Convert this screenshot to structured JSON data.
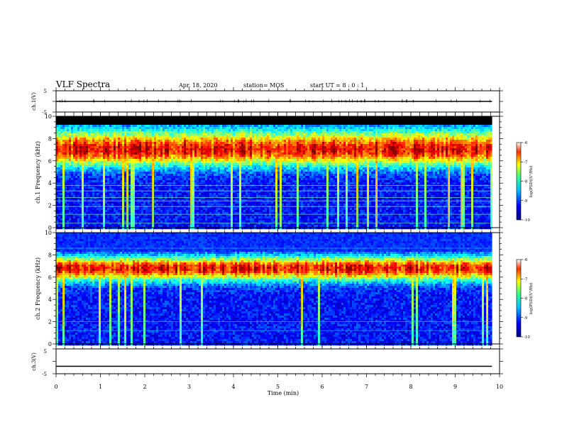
{
  "header": {
    "title": "VLF Spectra",
    "date": "Apr. 18, 2020",
    "station": "station= MOS",
    "start": "start  UT =  8 : 0 : 1"
  },
  "colorbar": {
    "ticks": [
      "-6",
      "-7",
      "-8",
      "-9",
      "-10"
    ],
    "label": "log(PSD)(V²/Hz)"
  },
  "chart_data": [
    {
      "type": "line",
      "panel": "ch.1 waveform",
      "ylabel": "ch.1(V)",
      "ylim": [
        -5,
        5
      ],
      "yticks": [
        "5",
        "-5"
      ],
      "x": [
        0,
        9.83
      ],
      "values": [
        0,
        0
      ],
      "xlim": [
        0,
        10
      ]
    },
    {
      "type": "heatmap",
      "panel": "ch.1 spectrogram",
      "ylabel": "ch.1 Frequency (kHz)",
      "ylim": [
        0,
        10
      ],
      "yticks": [
        "0",
        "2",
        "4",
        "6",
        "8",
        "10"
      ],
      "xlim": [
        0,
        10
      ],
      "x_data_end": 9.83,
      "band_center_khz": 7.0,
      "band_lower_khz": 5.3,
      "band_upper_khz": 9.0,
      "black_above_khz": 9.3,
      "narrowband_lines_khz": [
        0.4,
        1.2,
        1.9,
        2.4,
        2.7,
        3.3,
        3.8
      ],
      "colorscale": "jet",
      "clim": [
        -10,
        -6
      ]
    },
    {
      "type": "heatmap",
      "panel": "ch.2 spectrogram",
      "ylabel": "ch.2 Frequency (kHz)",
      "ylim": [
        0,
        10
      ],
      "yticks": [
        "0",
        "2",
        "4",
        "6",
        "8",
        "10"
      ],
      "xlim": [
        0,
        10
      ],
      "x_data_end": 9.83,
      "band_center_khz": 6.8,
      "band_lower_khz": 5.5,
      "band_upper_khz": 8.0,
      "narrowband_lines_khz": [
        1.2,
        2.0,
        8.6
      ],
      "colorscale": "jet",
      "clim": [
        -10,
        -6
      ]
    },
    {
      "type": "line",
      "panel": "ch.3 waveform",
      "ylabel": "ch.3(V)",
      "ylim": [
        -5,
        5
      ],
      "yticks": [
        "5",
        "-5"
      ],
      "x": [
        0,
        9.83
      ],
      "values": [
        -2,
        -2
      ],
      "xlim": [
        0,
        10
      ],
      "xlabel": "Time  (min)",
      "xticks": [
        "0",
        "1",
        "2",
        "3",
        "4",
        "5",
        "6",
        "7",
        "8",
        "9",
        "10"
      ]
    }
  ]
}
